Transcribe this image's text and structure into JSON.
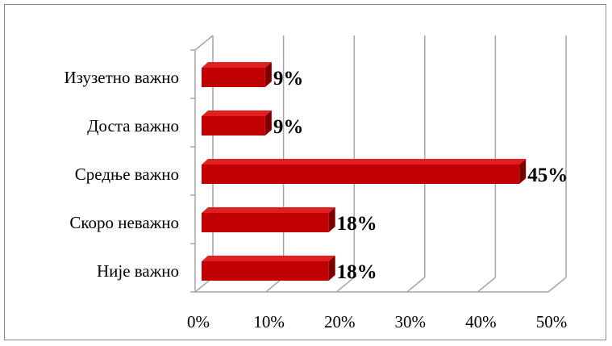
{
  "chart_data": {
    "type": "bar",
    "orientation": "horizontal",
    "three_d": true,
    "categories": [
      "Изузетно важно",
      "Доста важно",
      "Средње важно",
      "Скоро неважно",
      "Није важно"
    ],
    "values": [
      9,
      9,
      45,
      18,
      18
    ],
    "data_labels": [
      "9%",
      "9%",
      "45%",
      "18%",
      "18%"
    ],
    "x_ticks": [
      "0%",
      "10%",
      "20%",
      "30%",
      "40%",
      "50%"
    ],
    "xlim": [
      0,
      50
    ],
    "grid": true,
    "legend": "none",
    "colors": {
      "bar_front": "#c00000",
      "bar_top": "#e02020",
      "bar_side": "#7a0000",
      "grid": "#a6a6a6",
      "frame": "#8c8c8c"
    }
  }
}
